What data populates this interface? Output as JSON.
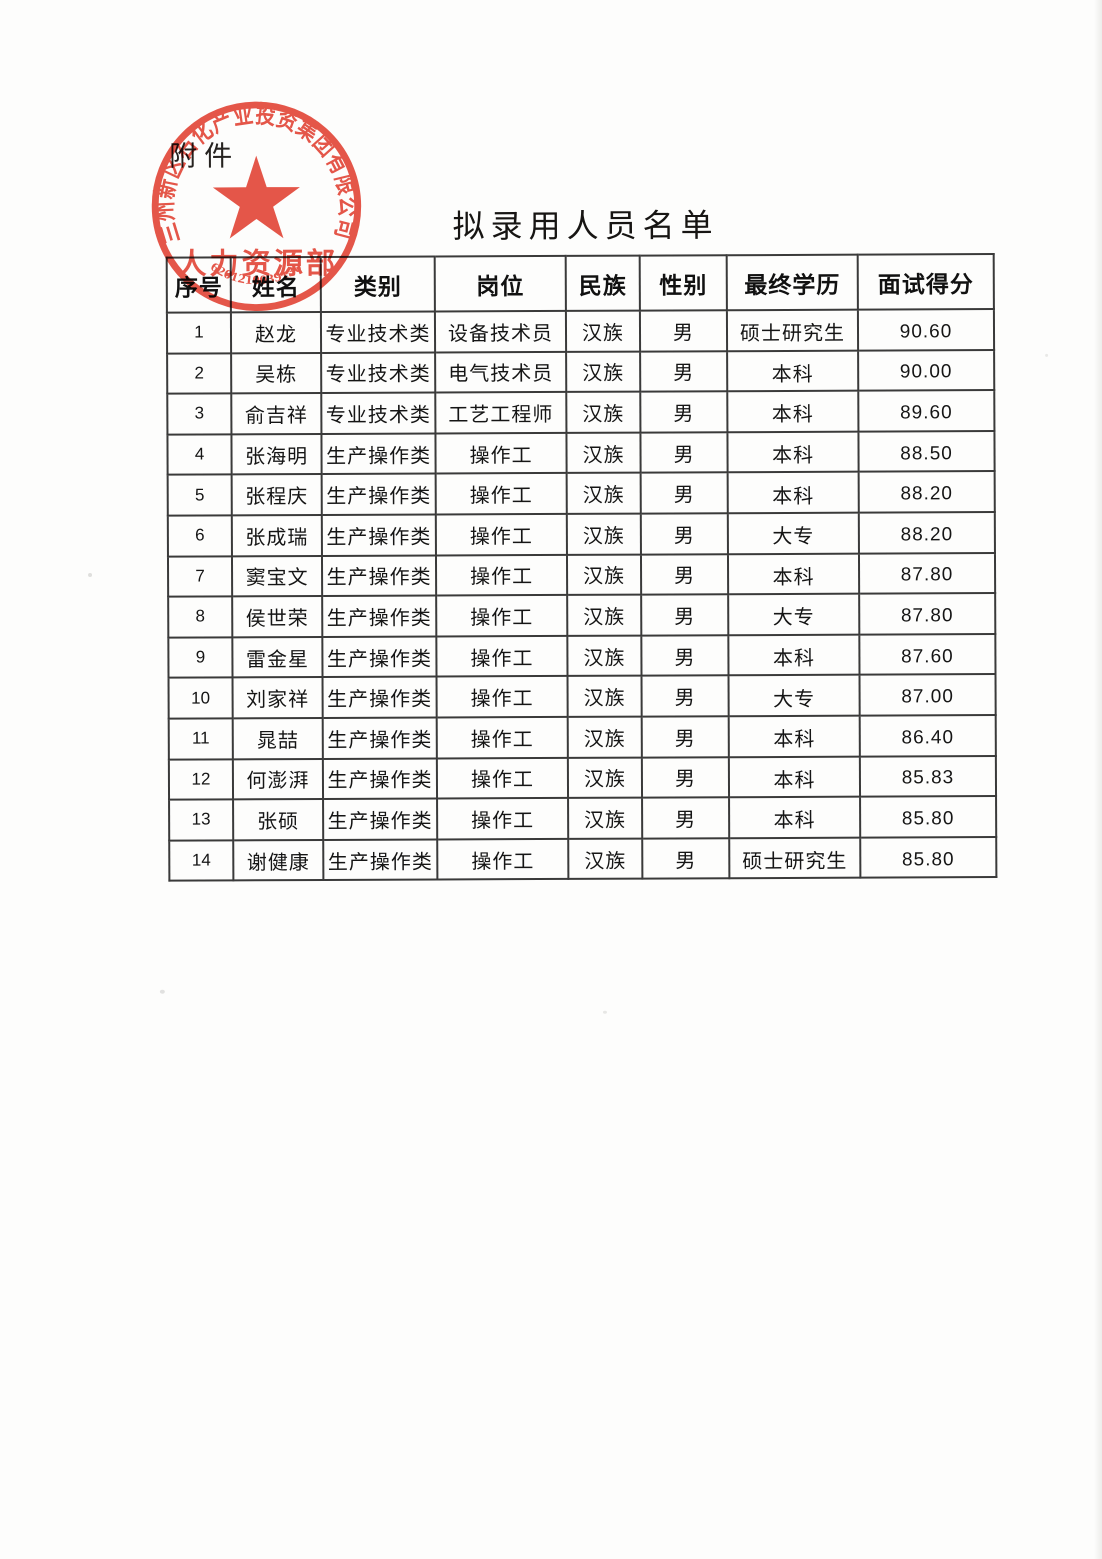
{
  "page": {
    "attachment_label": "附件",
    "title": "拟录用人员名单"
  },
  "stamp": {
    "ring_text": "兰州新区石化产业投资集团有限公司",
    "department": "人力资源部",
    "serial": "6201210039130",
    "color": "#e2493b"
  },
  "table": {
    "headers": [
      "序号",
      "姓名",
      "类别",
      "岗位",
      "民族",
      "性别",
      "最终学历",
      "面试得分"
    ],
    "rows": [
      [
        "1",
        "赵龙",
        "专业技术类",
        "设备技术员",
        "汉族",
        "男",
        "硕士研究生",
        "90.60"
      ],
      [
        "2",
        "吴栋",
        "专业技术类",
        "电气技术员",
        "汉族",
        "男",
        "本科",
        "90.00"
      ],
      [
        "3",
        "俞吉祥",
        "专业技术类",
        "工艺工程师",
        "汉族",
        "男",
        "本科",
        "89.60"
      ],
      [
        "4",
        "张海明",
        "生产操作类",
        "操作工",
        "汉族",
        "男",
        "本科",
        "88.50"
      ],
      [
        "5",
        "张程庆",
        "生产操作类",
        "操作工",
        "汉族",
        "男",
        "本科",
        "88.20"
      ],
      [
        "6",
        "张成瑞",
        "生产操作类",
        "操作工",
        "汉族",
        "男",
        "大专",
        "88.20"
      ],
      [
        "7",
        "窦宝文",
        "生产操作类",
        "操作工",
        "汉族",
        "男",
        "本科",
        "87.80"
      ],
      [
        "8",
        "侯世荣",
        "生产操作类",
        "操作工",
        "汉族",
        "男",
        "大专",
        "87.80"
      ],
      [
        "9",
        "雷金星",
        "生产操作类",
        "操作工",
        "汉族",
        "男",
        "本科",
        "87.60"
      ],
      [
        "10",
        "刘家祥",
        "生产操作类",
        "操作工",
        "汉族",
        "男",
        "大专",
        "87.00"
      ],
      [
        "11",
        "晁喆",
        "生产操作类",
        "操作工",
        "汉族",
        "男",
        "本科",
        "86.40"
      ],
      [
        "12",
        "何澎湃",
        "生产操作类",
        "操作工",
        "汉族",
        "男",
        "本科",
        "85.83"
      ],
      [
        "13",
        "张硕",
        "生产操作类",
        "操作工",
        "汉族",
        "男",
        "本科",
        "85.80"
      ],
      [
        "14",
        "谢健康",
        "生产操作类",
        "操作工",
        "汉族",
        "男",
        "硕士研究生",
        "85.80"
      ]
    ]
  }
}
